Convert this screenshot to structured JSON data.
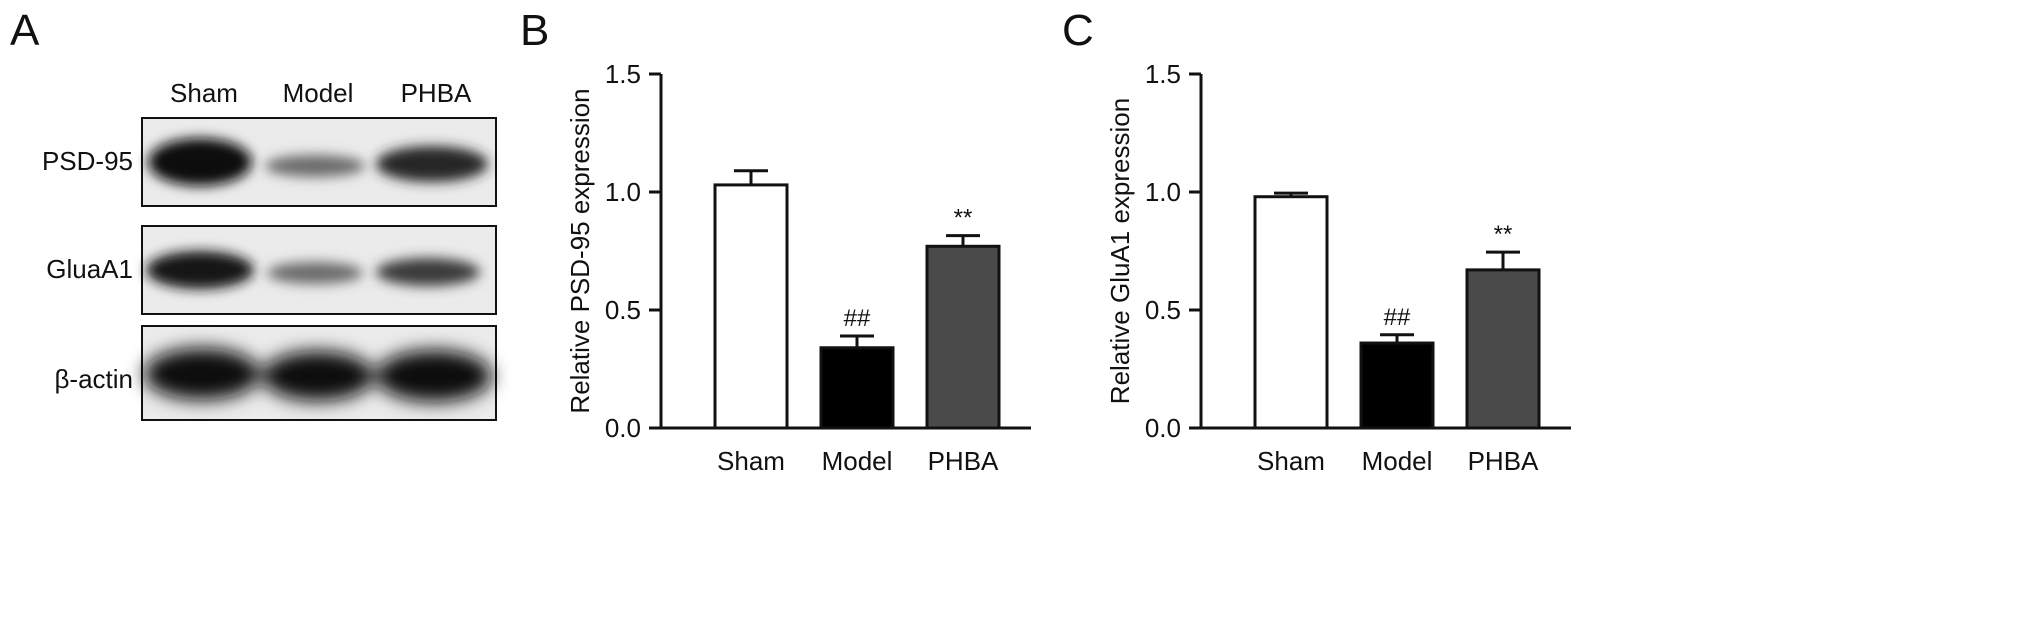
{
  "panels": {
    "a": "A",
    "b": "B",
    "c": "C"
  },
  "blot": {
    "lanes": [
      "Sham",
      "Model",
      "PHBA"
    ],
    "rows": [
      "PSD-95",
      "GluaA1",
      "β-actin"
    ]
  },
  "chart_data": [
    {
      "type": "bar",
      "categories": [
        "Sham",
        "Model",
        "PHBA"
      ],
      "values": [
        1.03,
        0.34,
        0.77
      ],
      "errors": [
        0.06,
        0.05,
        0.045
      ],
      "annotations": [
        "",
        "##",
        "**"
      ],
      "fills": [
        "#ffffff",
        "#000000",
        "#4a4a4a"
      ],
      "ylabel": "Relative PSD-95 expression",
      "ylim": [
        0,
        1.5
      ],
      "yticks": [
        "0.0",
        "0.5",
        "1.0",
        "1.5"
      ],
      "grid": false
    },
    {
      "type": "bar",
      "categories": [
        "Sham",
        "Model",
        "PHBA"
      ],
      "values": [
        0.98,
        0.36,
        0.67
      ],
      "errors": [
        0.015,
        0.035,
        0.075
      ],
      "annotations": [
        "",
        "##",
        "**"
      ],
      "fills": [
        "#ffffff",
        "#000000",
        "#4a4a4a"
      ],
      "ylabel": "Relative GluA1 expression",
      "ylim": [
        0,
        1.5
      ],
      "yticks": [
        "0.0",
        "0.5",
        "1.0",
        "1.5"
      ],
      "grid": false
    }
  ]
}
